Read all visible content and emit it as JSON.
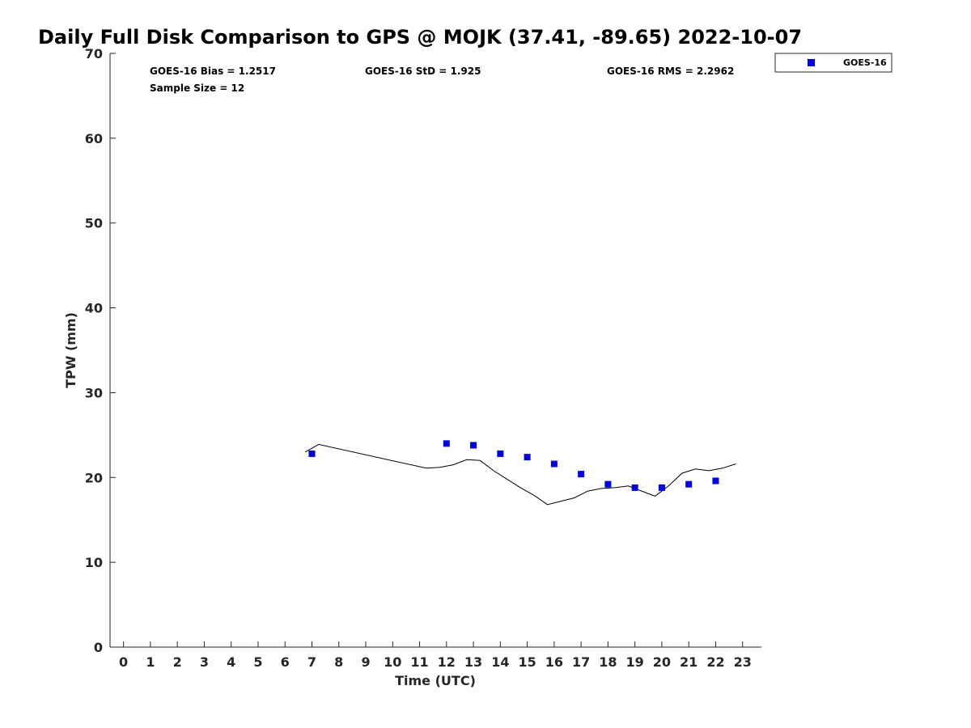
{
  "chart_data": {
    "type": "scatter",
    "title": "Daily Full Disk Comparison to GPS @ MOJK (37.41, -89.65) 2022-10-07",
    "xlabel": "Time (UTC)",
    "ylabel": "TPW (mm)",
    "xlim": [
      -0.5,
      23.7
    ],
    "ylim": [
      0,
      70
    ],
    "x_ticks": [
      0,
      1,
      2,
      3,
      4,
      5,
      6,
      7,
      8,
      9,
      10,
      11,
      12,
      13,
      14,
      15,
      16,
      17,
      18,
      19,
      20,
      21,
      22,
      23
    ],
    "y_ticks": [
      0,
      10,
      20,
      30,
      40,
      50,
      60,
      70
    ],
    "grid": false,
    "legend_placement": "top-right, outside plot",
    "stats": {
      "bias": "GOES-16 Bias = 1.2517",
      "std": "GOES-16 StD = 1.925",
      "rms": "GOES-16 RMS = 2.2962",
      "sample_size": "Sample Size = 12"
    },
    "series": [
      {
        "name": "GOES-16",
        "kind": "scatter",
        "marker": "square",
        "color": "#0000e0",
        "x": [
          7,
          12,
          13,
          14,
          15,
          16,
          17,
          18,
          19,
          20,
          21,
          22
        ],
        "y": [
          22.8,
          24.0,
          23.8,
          22.8,
          22.4,
          21.6,
          20.4,
          19.2,
          18.8,
          18.8,
          19.2,
          19.6
        ]
      },
      {
        "kind": "line",
        "color": "#000000",
        "x": [
          6.75,
          7.25,
          11.25,
          11.75,
          12.25,
          12.75,
          13.25,
          13.75,
          14.25,
          14.75,
          15.25,
          15.75,
          16.25,
          16.75,
          17.25,
          17.75,
          18.25,
          18.75,
          19.25,
          19.75,
          20.25,
          20.75,
          21.25,
          21.75,
          22.25,
          22.75
        ],
        "y": [
          23.0,
          23.9,
          21.1,
          21.2,
          21.5,
          22.1,
          22.0,
          20.8,
          19.8,
          18.8,
          17.9,
          16.8,
          17.2,
          17.6,
          18.4,
          18.7,
          18.8,
          19.0,
          18.4,
          17.8,
          19.0,
          20.5,
          21.0,
          20.8,
          21.1,
          21.6
        ]
      }
    ]
  }
}
